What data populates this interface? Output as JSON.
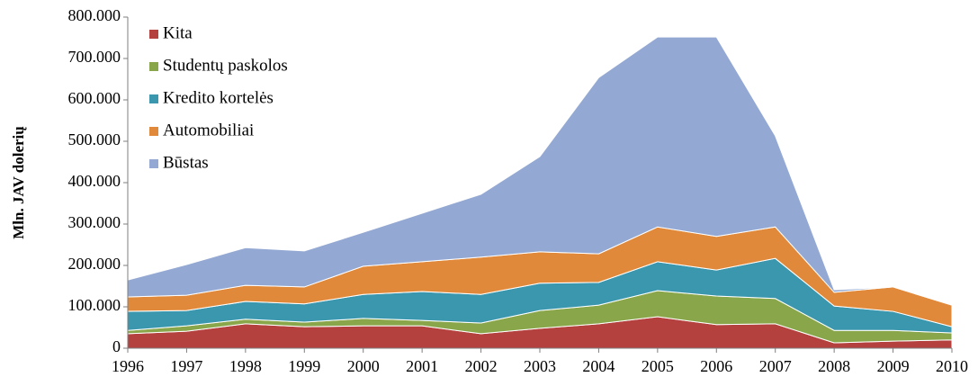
{
  "chart_data": {
    "type": "stacked_area",
    "y_label": "Mln. JAV dolerių",
    "x": [
      1996,
      1997,
      1998,
      1999,
      2000,
      2001,
      2002,
      2003,
      2004,
      2005,
      2006,
      2007,
      2008,
      2009,
      2010
    ],
    "xlim": [
      1996,
      2010
    ],
    "xticks": [
      1996,
      1997,
      1998,
      1999,
      2000,
      2001,
      2002,
      2003,
      2004,
      2005,
      2006,
      2007,
      2008,
      2009,
      2010
    ],
    "ylim": [
      0,
      800000
    ],
    "yticks": [
      0,
      {
        "value": 100000,
        "label": "100.000"
      },
      {
        "value": 200000,
        "label": "200.000"
      },
      {
        "value": 300000,
        "label": "300.000"
      },
      {
        "value": 400000,
        "label": "400.000"
      },
      {
        "value": 500000,
        "label": "500.000"
      },
      {
        "value": 600000,
        "label": "600.000"
      },
      {
        "value": 700000,
        "label": "700.000"
      },
      {
        "value": 800000,
        "label": "800.000"
      }
    ],
    "grid": false,
    "legend": "upper left",
    "series": [
      {
        "name": "Kita",
        "color": "#b5413f",
        "values": [
          35000,
          41000,
          59000,
          52000,
          54000,
          54000,
          35000,
          48000,
          59000,
          76000,
          57000,
          59000,
          13000,
          17000,
          20000
        ]
      },
      {
        "name": "Studentų paskolos",
        "color": "#8aa64a",
        "values": [
          8000,
          13000,
          11000,
          11000,
          18000,
          13000,
          26000,
          43000,
          45000,
          63000,
          69000,
          61000,
          30000,
          26000,
          17000
        ]
      },
      {
        "name": "Kredito kortelės",
        "color": "#3a97ad",
        "values": [
          46000,
          37000,
          43000,
          44000,
          58000,
          70000,
          69000,
          66000,
          55000,
          70000,
          63000,
          97000,
          59000,
          46000,
          15000
        ]
      },
      {
        "name": "Automobiliai",
        "color": "#e1893a",
        "values": [
          35000,
          37000,
          39000,
          41000,
          68000,
          72000,
          90000,
          76000,
          69000,
          84000,
          81000,
          76000,
          33000,
          59000,
          52000
        ]
      },
      {
        "name": "Būstas",
        "color": "#93a8d2",
        "values": [
          41000,
          74000,
          91000,
          87000,
          82000,
          117000,
          152000,
          230000,
          426000,
          459000,
          482000,
          220000,
          6000,
          0,
          0
        ]
      }
    ]
  }
}
